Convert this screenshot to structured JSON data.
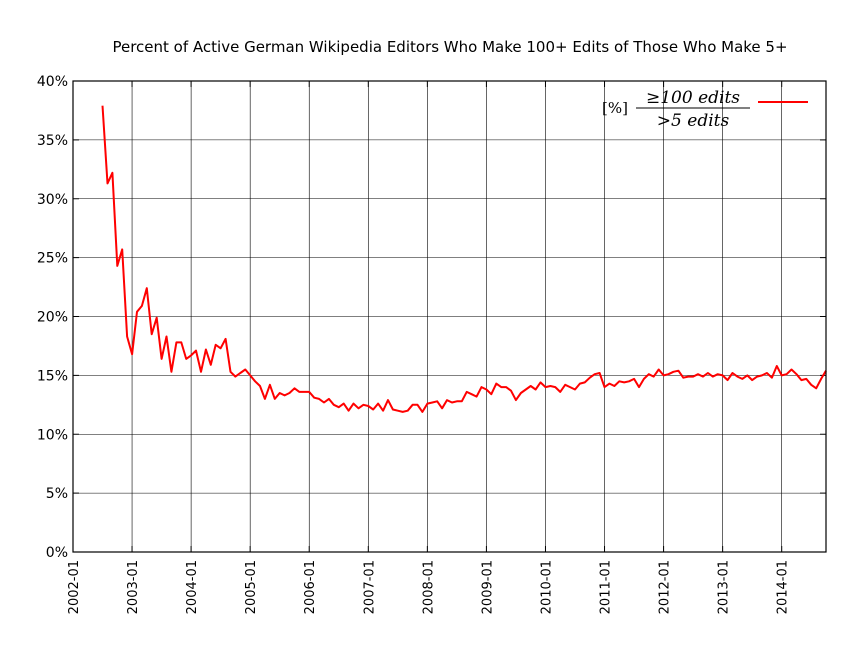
{
  "chart_data": {
    "type": "line",
    "title": "Percent of Active German Wikipedia Editors Who Make 100+ Edits of Those Who Make 5+",
    "xlabel": "",
    "ylabel": "",
    "xlim": [
      "2002-01",
      "2014-10"
    ],
    "ylim": [
      0,
      40
    ],
    "grid": true,
    "legend_position": "top-right",
    "yticks": [
      0,
      5,
      10,
      15,
      20,
      25,
      30,
      35,
      40
    ],
    "ytick_labels": [
      "0%",
      "5%",
      "10%",
      "15%",
      "20%",
      "25%",
      "30%",
      "35%",
      "40%"
    ],
    "xticks": [
      "2002-01",
      "2003-01",
      "2004-01",
      "2005-01",
      "2006-01",
      "2007-01",
      "2008-01",
      "2009-01",
      "2010-01",
      "2011-01",
      "2012-01",
      "2013-01",
      "2014-01"
    ],
    "series_color": "#ff0000",
    "legend": {
      "unit": "[%]",
      "numerator": "≥100 edits",
      "denominator": ">5 edits"
    },
    "series": [
      {
        "name": "≥100 edits / >5 edits",
        "x": [
          "2002-07",
          "2002-08",
          "2002-09",
          "2002-10",
          "2002-11",
          "2002-12",
          "2003-01",
          "2003-02",
          "2003-03",
          "2003-04",
          "2003-05",
          "2003-06",
          "2003-07",
          "2003-08",
          "2003-09",
          "2003-10",
          "2003-11",
          "2003-12",
          "2004-01",
          "2004-02",
          "2004-03",
          "2004-04",
          "2004-05",
          "2004-06",
          "2004-07",
          "2004-08",
          "2004-09",
          "2004-10",
          "2004-11",
          "2004-12",
          "2005-01",
          "2005-02",
          "2005-03",
          "2005-04",
          "2005-05",
          "2005-06",
          "2005-07",
          "2005-08",
          "2005-09",
          "2005-10",
          "2005-11",
          "2005-12",
          "2006-01",
          "2006-02",
          "2006-03",
          "2006-04",
          "2006-05",
          "2006-06",
          "2006-07",
          "2006-08",
          "2006-09",
          "2006-10",
          "2006-11",
          "2006-12",
          "2007-01",
          "2007-02",
          "2007-03",
          "2007-04",
          "2007-05",
          "2007-06",
          "2007-07",
          "2007-08",
          "2007-09",
          "2007-10",
          "2007-11",
          "2007-12",
          "2008-01",
          "2008-02",
          "2008-03",
          "2008-04",
          "2008-05",
          "2008-06",
          "2008-07",
          "2008-08",
          "2008-09",
          "2008-10",
          "2008-11",
          "2008-12",
          "2009-01",
          "2009-02",
          "2009-03",
          "2009-04",
          "2009-05",
          "2009-06",
          "2009-07",
          "2009-08",
          "2009-09",
          "2009-10",
          "2009-11",
          "2009-12",
          "2010-01",
          "2010-02",
          "2010-03",
          "2010-04",
          "2010-05",
          "2010-06",
          "2010-07",
          "2010-08",
          "2010-09",
          "2010-10",
          "2010-11",
          "2010-12",
          "2011-01",
          "2011-02",
          "2011-03",
          "2011-04",
          "2011-05",
          "2011-06",
          "2011-07",
          "2011-08",
          "2011-09",
          "2011-10",
          "2011-11",
          "2011-12",
          "2012-01",
          "2012-02",
          "2012-03",
          "2012-04",
          "2012-05",
          "2012-06",
          "2012-07",
          "2012-08",
          "2012-09",
          "2012-10",
          "2012-11",
          "2012-12",
          "2013-01",
          "2013-02",
          "2013-03",
          "2013-04",
          "2013-05",
          "2013-06",
          "2013-07",
          "2013-08",
          "2013-09",
          "2013-10",
          "2013-11",
          "2013-12",
          "2014-01",
          "2014-02",
          "2014-03",
          "2014-04",
          "2014-05",
          "2014-06",
          "2014-07",
          "2014-08",
          "2014-09",
          "2014-10"
        ],
        "values": [
          37.9,
          31.3,
          32.2,
          24.3,
          25.7,
          18.3,
          16.8,
          20.4,
          20.9,
          22.4,
          18.5,
          19.9,
          16.4,
          18.3,
          15.3,
          17.8,
          17.8,
          16.4,
          16.7,
          17.1,
          15.3,
          17.2,
          15.9,
          17.6,
          17.3,
          18.1,
          15.3,
          14.9,
          15.2,
          15.5,
          15.0,
          14.5,
          14.1,
          13.0,
          14.2,
          13.0,
          13.5,
          13.3,
          13.5,
          13.9,
          13.6,
          13.6,
          13.6,
          13.1,
          13.0,
          12.7,
          13.0,
          12.5,
          12.3,
          12.6,
          12.0,
          12.6,
          12.2,
          12.5,
          12.4,
          12.1,
          12.6,
          12.0,
          12.9,
          12.1,
          12.0,
          11.9,
          12.0,
          12.5,
          12.5,
          11.9,
          12.6,
          12.7,
          12.8,
          12.2,
          12.9,
          12.7,
          12.8,
          12.8,
          13.6,
          13.4,
          13.2,
          14.0,
          13.8,
          13.4,
          14.3,
          14.0,
          14.0,
          13.7,
          12.9,
          13.5,
          13.8,
          14.1,
          13.8,
          14.4,
          14.0,
          14.1,
          14.0,
          13.6,
          14.2,
          14.0,
          13.8,
          14.3,
          14.4,
          14.8,
          15.1,
          15.2,
          14.0,
          14.3,
          14.1,
          14.5,
          14.4,
          14.5,
          14.7,
          14.0,
          14.7,
          15.1,
          14.9,
          15.5,
          15.0,
          15.1,
          15.3,
          15.4,
          14.8,
          14.9,
          14.9,
          15.1,
          14.9,
          15.2,
          14.9,
          15.1,
          15.0,
          14.6,
          15.2,
          14.9,
          14.7,
          15.0,
          14.6,
          14.9,
          15.0,
          15.2,
          14.8,
          15.8,
          15.0,
          15.1,
          15.5,
          15.1,
          14.6,
          14.7,
          14.2,
          13.9,
          14.7,
          15.4
        ]
      }
    ]
  }
}
